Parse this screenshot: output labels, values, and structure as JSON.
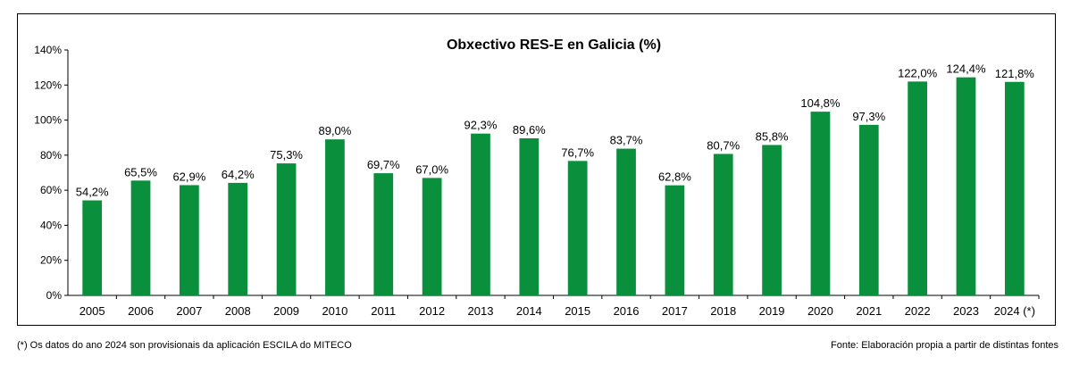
{
  "chart_data": {
    "type": "bar",
    "title": "Obxectivo RES-E en Galicia (%)",
    "xlabel": "",
    "ylabel": "",
    "categories": [
      "2005",
      "2006",
      "2007",
      "2008",
      "2009",
      "2010",
      "2011",
      "2012",
      "2013",
      "2014",
      "2015",
      "2016",
      "2017",
      "2018",
      "2019",
      "2020",
      "2021",
      "2022",
      "2023",
      "2024 (*)"
    ],
    "values": [
      54.2,
      65.5,
      62.9,
      64.2,
      75.3,
      89.0,
      69.7,
      67.0,
      92.3,
      89.6,
      76.7,
      83.7,
      62.8,
      80.7,
      85.8,
      104.8,
      97.3,
      122.0,
      124.4,
      121.8
    ],
    "data_labels": [
      "54,2%",
      "65,5%",
      "62,9%",
      "64,2%",
      "75,3%",
      "89,0%",
      "69,7%",
      "67,0%",
      "92,3%",
      "89,6%",
      "76,7%",
      "83,7%",
      "62,8%",
      "80,7%",
      "85,8%",
      "104,8%",
      "97,3%",
      "122,0%",
      "124,4%",
      "121,8%"
    ],
    "ylim": [
      0,
      140
    ],
    "yticks": [
      0,
      20,
      40,
      60,
      80,
      100,
      120,
      140
    ],
    "ytick_labels": [
      "0%",
      "20%",
      "40%",
      "60%",
      "80%",
      "100%",
      "120%",
      "140%"
    ],
    "grid": false,
    "legend": "none",
    "bar_color": "#0a8f3c"
  },
  "footnotes": {
    "left": "(*) Os datos do ano 2024 son provisionais da aplicación ESCILA do MITECO",
    "right": "Fonte: Elaboración propia a partir de distintas fontes"
  }
}
